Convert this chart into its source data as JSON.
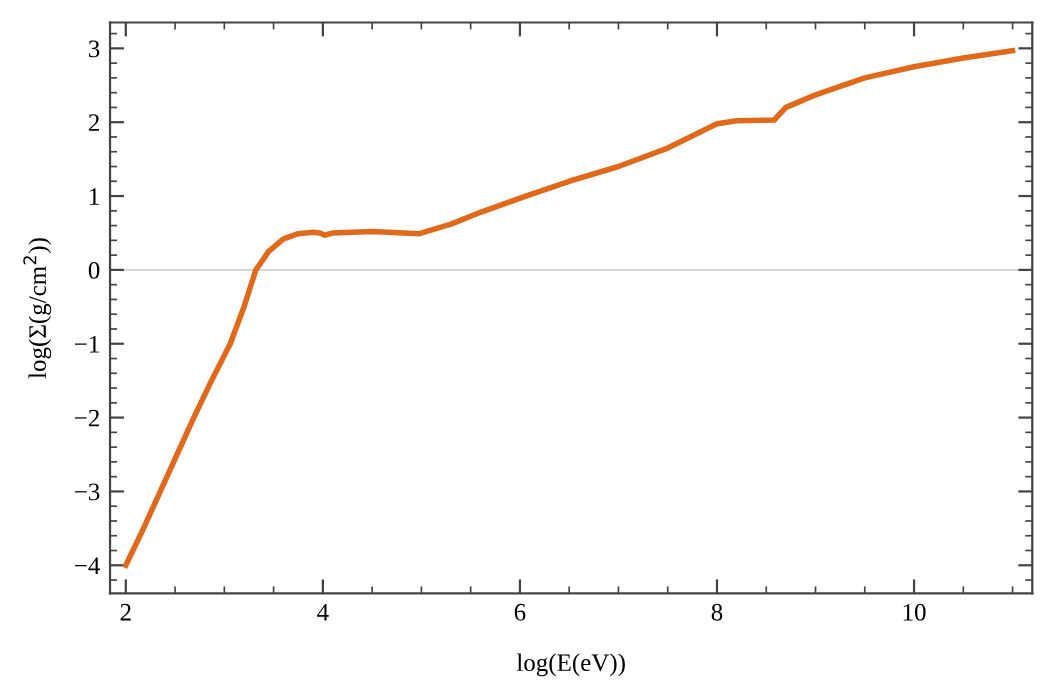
{
  "chart_data": {
    "type": "line",
    "xlabel": "log(E(eV))",
    "ylabel": "log(Σ(g/cm$^{2}$))",
    "xlim": [
      1.84,
      11.2
    ],
    "ylim": [
      -4.38,
      3.35
    ],
    "xticks": [
      2,
      4,
      6,
      8,
      10
    ],
    "yticks": [
      -4,
      -3,
      -2,
      -1,
      0,
      1,
      2,
      3
    ],
    "grid": false,
    "legend": false,
    "marker": "none",
    "line_style": "solid",
    "ref_lines": [
      {
        "axis": "y",
        "value": 0,
        "color": "#d0d0d0"
      }
    ],
    "series": [
      {
        "color": "#e06a1c",
        "x": [
          2,
          2.18,
          2.35,
          2.52,
          2.69,
          2.87,
          3.06,
          3.2,
          3.32,
          3.45,
          3.6,
          3.75,
          3.9,
          3.97,
          4.02,
          4.1,
          4.5,
          4.98,
          5.3,
          5.6,
          6.06,
          6.5,
          7,
          7.5,
          8.0,
          8.2,
          8.58,
          8.7,
          9,
          9.5,
          10,
          10.5,
          11
        ],
        "values": [
          -4,
          -3.5,
          -3,
          -2.5,
          -2,
          -1.5,
          -1,
          -0.5,
          0,
          0.25,
          0.42,
          0.49,
          0.51,
          0.5,
          0.47,
          0.5,
          0.52,
          0.49,
          0.62,
          0.78,
          1.0,
          1.2,
          1.4,
          1.65,
          1.98,
          2.02,
          2.03,
          2.2,
          2.37,
          2.6,
          2.75,
          2.87,
          2.97
        ]
      }
    ]
  }
}
